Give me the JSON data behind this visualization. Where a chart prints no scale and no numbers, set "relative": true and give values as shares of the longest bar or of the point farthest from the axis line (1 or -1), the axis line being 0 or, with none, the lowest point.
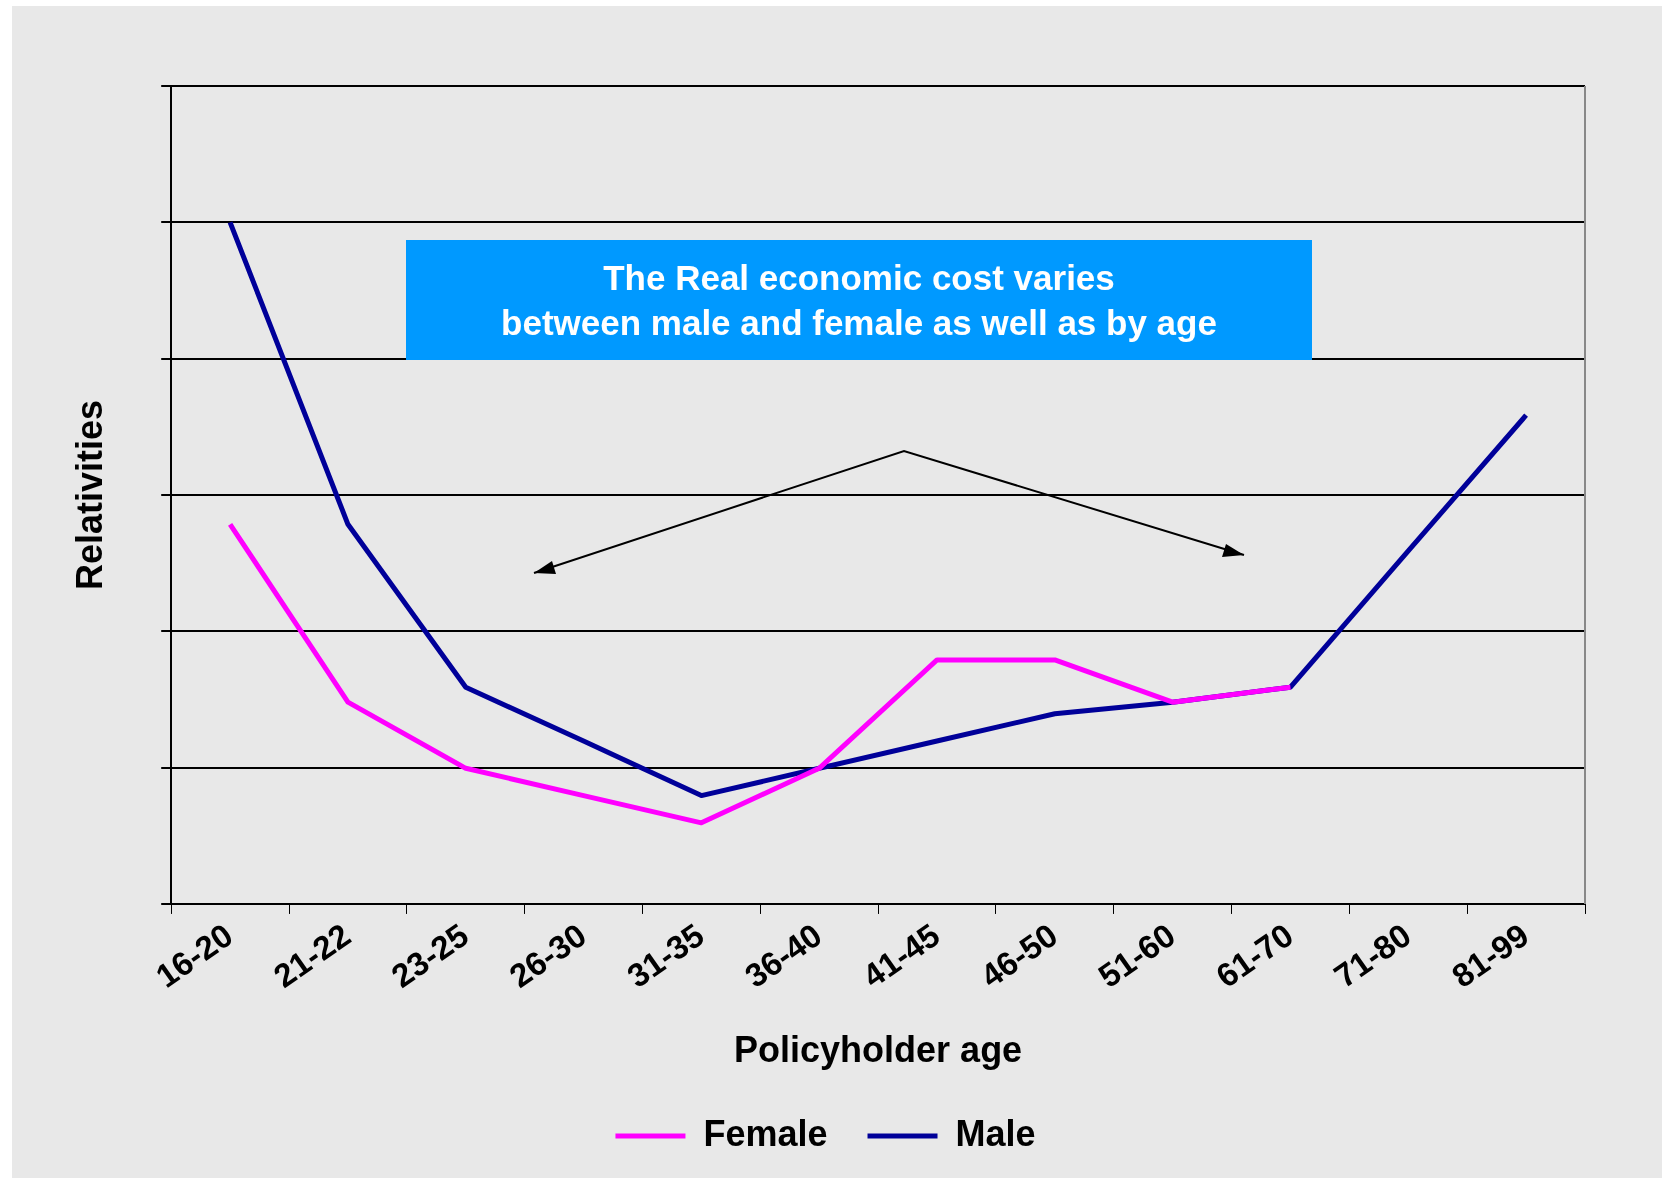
{
  "chart_data": {
    "type": "line",
    "relative": true,
    "xlabel": "Policyholder age",
    "ylabel": "Relativities",
    "categories": [
      "16-20",
      "21-22",
      "23-25",
      "26-30",
      "31-35",
      "36-40",
      "41-45",
      "46-50",
      "51-60",
      "61-70",
      "71-80",
      "81-99"
    ],
    "series": [
      {
        "name": "Female",
        "color": "#ff00ff",
        "values": [
          0.557,
          0.296,
          0.199,
          0.159,
          0.119,
          0.199,
          0.358,
          0.358,
          0.296,
          0.318,
          null,
          null
        ]
      },
      {
        "name": "Male",
        "color": "#000099",
        "values": [
          1,
          0.557,
          0.318,
          0.239,
          0.159,
          0.199,
          0.239,
          0.279,
          0.296,
          0.318,
          0.518,
          0.717
        ]
      }
    ],
    "annotations": [
      "The Real economic cost varies\nbetween male and female as well as by age"
    ],
    "grid": "y",
    "legend": "bottom",
    "marker": "none",
    "line_style": "solid"
  }
}
